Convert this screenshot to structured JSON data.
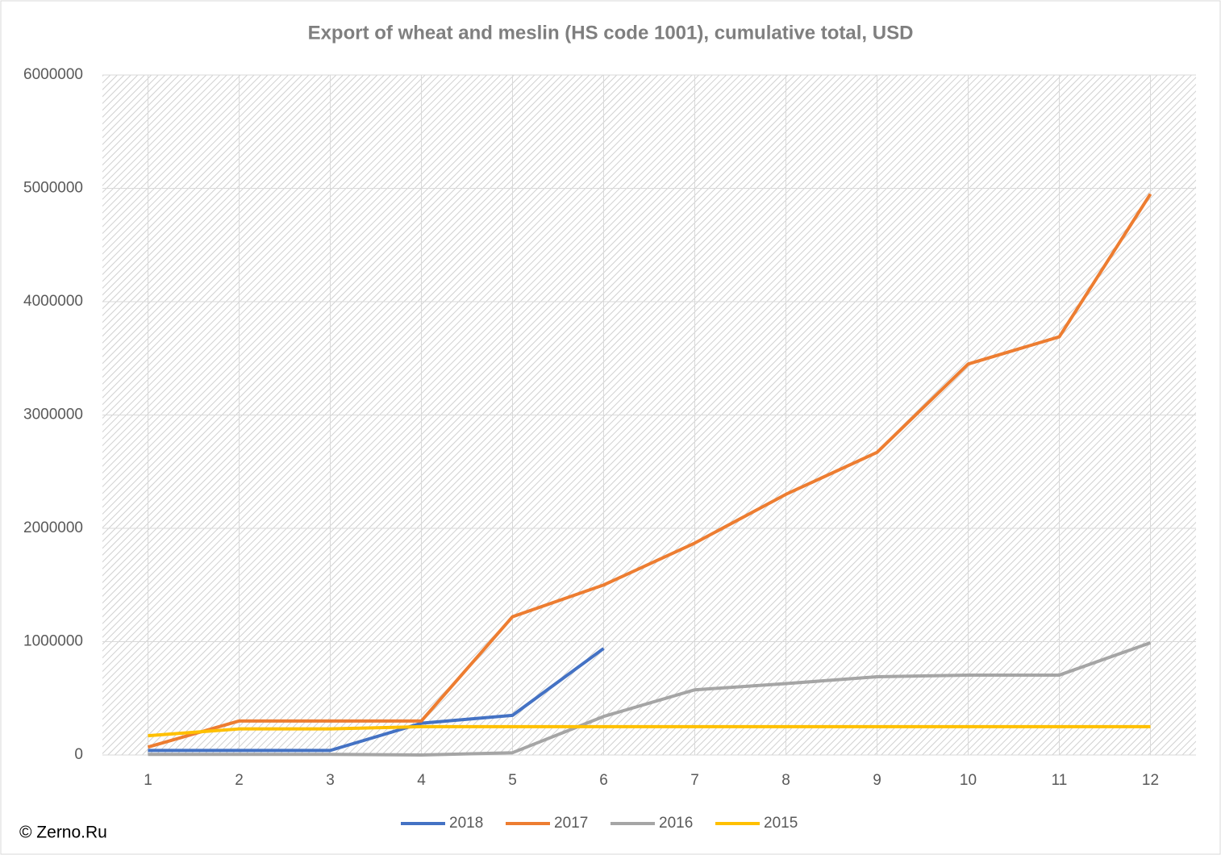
{
  "chart_data": {
    "type": "line",
    "title": "Export of wheat and meslin (HS code 1001), cumulative total, USD",
    "source": "© Zerno.Ru",
    "categories": [
      "1",
      "2",
      "3",
      "4",
      "5",
      "6",
      "7",
      "8",
      "9",
      "10",
      "11",
      "12"
    ],
    "series": [
      {
        "name": "2018",
        "color": "#4472c4",
        "values": [
          40000,
          40000,
          40000,
          280000,
          350000,
          940000,
          null,
          null,
          null,
          null,
          null,
          null
        ]
      },
      {
        "name": "2017",
        "color": "#ed7d31",
        "values": [
          70000,
          300000,
          300000,
          300000,
          1220000,
          1500000,
          1870000,
          2300000,
          2670000,
          3450000,
          3690000,
          4950000
        ]
      },
      {
        "name": "2016",
        "color": "#a5a5a5",
        "values": [
          5000,
          5000,
          5000,
          0,
          20000,
          340000,
          575000,
          630000,
          690000,
          705000,
          705000,
          990000
        ]
      },
      {
        "name": "2015",
        "color": "#ffc000",
        "values": [
          170000,
          230000,
          230000,
          250000,
          250000,
          250000,
          250000,
          250000,
          250000,
          250000,
          250000,
          250000
        ]
      }
    ],
    "ylim": [
      0,
      6000000
    ],
    "yticks": [
      0,
      1000000,
      2000000,
      3000000,
      4000000,
      5000000,
      6000000
    ],
    "grid": true,
    "legend": "bottom"
  }
}
